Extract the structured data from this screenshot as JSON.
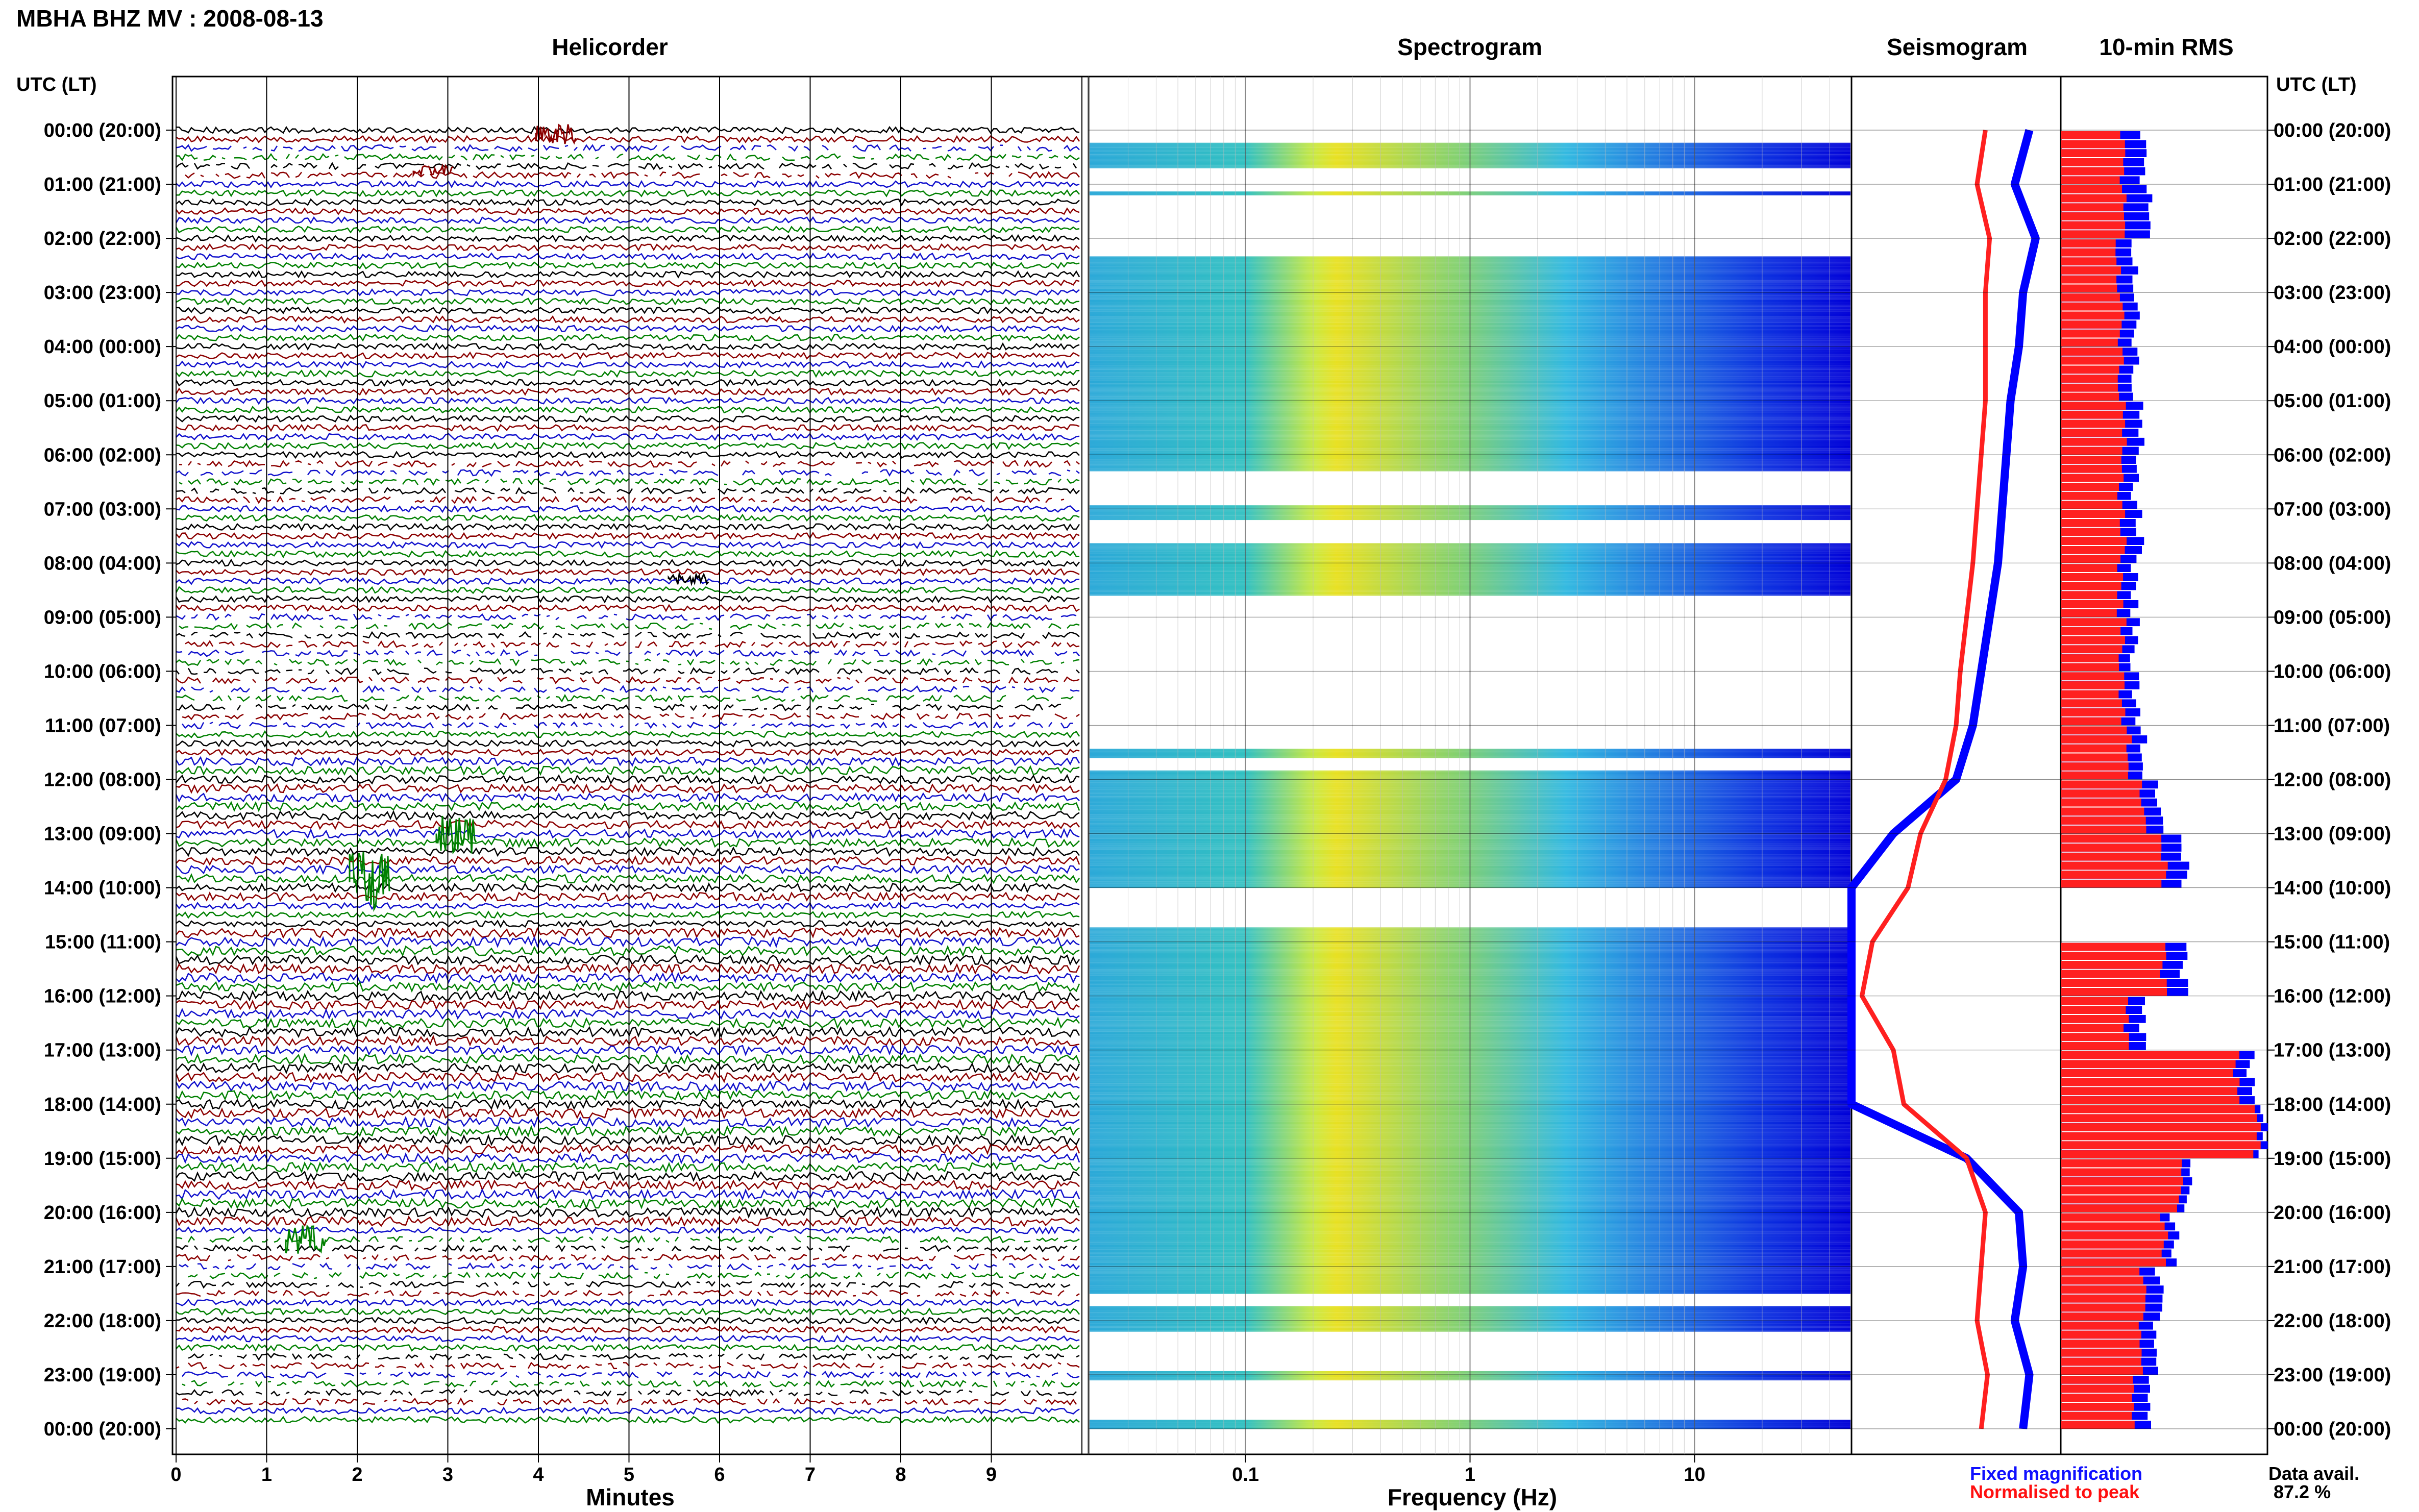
{
  "title": "MBHA BHZ MV : 2008-08-13",
  "panels": {
    "helicorder": "Helicorder",
    "spectrogram": "Spectrogram",
    "seismogram": "Seismogram",
    "rms": "10-min RMS"
  },
  "axis_titles": {
    "left": "UTC (LT)",
    "right": "UTC (LT)",
    "x_helicorder": "Minutes",
    "x_spectrogram": "Frequency (Hz)"
  },
  "hour_labels": [
    "00:00 (20:00)",
    "01:00 (21:00)",
    "02:00 (22:00)",
    "03:00 (23:00)",
    "04:00 (00:00)",
    "05:00 (01:00)",
    "06:00 (02:00)",
    "07:00 (03:00)",
    "08:00 (04:00)",
    "09:00 (05:00)",
    "10:00 (06:00)",
    "11:00 (07:00)",
    "12:00 (08:00)",
    "13:00 (09:00)",
    "14:00 (10:00)",
    "15:00 (11:00)",
    "16:00 (12:00)",
    "17:00 (13:00)",
    "18:00 (14:00)",
    "19:00 (15:00)",
    "20:00 (16:00)",
    "21:00 (17:00)",
    "22:00 (18:00)",
    "23:00 (19:00)",
    "00:00 (20:00)"
  ],
  "minute_ticks": [
    "0",
    "1",
    "2",
    "3",
    "4",
    "5",
    "6",
    "7",
    "8",
    "9"
  ],
  "freq_ticks": [
    "0.1",
    "1",
    "10"
  ],
  "legend": {
    "fixed": "Fixed magnification",
    "normalised": "Normalised to peak",
    "fixed_color": "#1010ff",
    "normalised_color": "#ff1010"
  },
  "availability": {
    "label": "Data avail.",
    "value": "87.2 %"
  },
  "colors": {
    "trace_black": "#000000",
    "trace_red": "#8b0000",
    "trace_blue": "#1010cc",
    "trace_green": "#008000",
    "rms_fixed": "#0000ff",
    "rms_normalised": "#ff2020"
  },
  "chart_data": [
    {
      "type": "line",
      "title": "Helicorder",
      "xlabel": "Minutes",
      "xlim": [
        0,
        10
      ],
      "ylabel": "UTC (LT)",
      "ylim_hours": [
        0,
        24
      ],
      "series_colors": [
        "black",
        "red",
        "blue",
        "green"
      ],
      "data_gaps_hours": [
        [
          0.2,
          0.9
        ],
        [
          6.1,
          6.9
        ],
        [
          8.9,
          11.0
        ],
        [
          20.4,
          21.6
        ],
        [
          22.6,
          23.6
        ]
      ]
    },
    {
      "type": "heatmap",
      "title": "Spectrogram",
      "xlabel": "Frequency (Hz)",
      "xscale": "log",
      "xlim": [
        0.02,
        50
      ],
      "ylim_hours": [
        0,
        24
      ],
      "blank_hours": [
        [
          0,
          0.2
        ],
        [
          0.7,
          1.1
        ],
        [
          1.2,
          2.3
        ],
        [
          6.3,
          6.9
        ],
        [
          7.2,
          7.6
        ],
        [
          8.6,
          11.4
        ],
        [
          11.6,
          11.8
        ],
        [
          14.0,
          14.7
        ],
        [
          21.5,
          21.7
        ],
        [
          22.2,
          22.9
        ],
        [
          23.1,
          23.8
        ]
      ],
      "peak_band_hz": [
        0.2,
        0.9
      ]
    },
    {
      "type": "line",
      "title": "Seismogram",
      "series": [
        {
          "name": "Fixed magnification",
          "color": "blue",
          "hours": [
            0,
            1,
            2,
            3,
            4,
            5,
            6,
            7,
            8,
            9,
            10,
            11,
            12,
            13,
            14,
            15,
            16,
            17,
            18,
            19,
            20,
            21,
            22,
            23,
            24
          ],
          "values": [
            0.85,
            0.78,
            0.88,
            0.82,
            0.8,
            0.76,
            0.74,
            0.72,
            0.7,
            0.66,
            0.62,
            0.58,
            0.5,
            0.2,
            0.0,
            0.0,
            0.0,
            0.0,
            0.0,
            0.55,
            0.8,
            0.82,
            0.78,
            0.85,
            0.82
          ]
        },
        {
          "name": "Normalised to peak",
          "color": "red",
          "hours": [
            0,
            1,
            2,
            3,
            4,
            5,
            6,
            7,
            8,
            9,
            10,
            11,
            12,
            13,
            14,
            15,
            16,
            17,
            18,
            19,
            20,
            21,
            22,
            23,
            24
          ],
          "values": [
            0.64,
            0.6,
            0.66,
            0.64,
            0.64,
            0.64,
            0.62,
            0.6,
            0.58,
            0.55,
            0.52,
            0.5,
            0.45,
            0.33,
            0.27,
            0.1,
            0.05,
            0.2,
            0.25,
            0.55,
            0.64,
            0.62,
            0.6,
            0.65,
            0.62
          ]
        }
      ]
    },
    {
      "type": "bar",
      "title": "10-min RMS",
      "orientation": "horizontal",
      "categories_hours": [
        0,
        1,
        2,
        3,
        4,
        5,
        6,
        7,
        8,
        9,
        10,
        11,
        12,
        13,
        14,
        15,
        16,
        17,
        18,
        19,
        20,
        21,
        22,
        23
      ],
      "series": [
        {
          "name": "Fixed magnification",
          "values": [
            0.4,
            0.42,
            0.36,
            0.36,
            0.36,
            0.38,
            0.36,
            0.38,
            0.36,
            0.36,
            0.37,
            0.4,
            0.48,
            0.6,
            0.65,
            0.6,
            0.4,
            0.92,
            0.98,
            0.62,
            0.55,
            0.48,
            0.45,
            0.44
          ]
        },
        {
          "name": "Normalised to peak",
          "values": [
            0.3,
            0.3,
            0.28,
            0.29,
            0.29,
            0.3,
            0.29,
            0.3,
            0.29,
            0.3,
            0.3,
            0.33,
            0.4,
            0.5,
            0.55,
            0.5,
            0.32,
            0.85,
            0.95,
            0.58,
            0.5,
            0.4,
            0.38,
            0.36
          ]
        }
      ],
      "missing_hours": [
        [
          14.0,
          14.7
        ]
      ]
    }
  ]
}
